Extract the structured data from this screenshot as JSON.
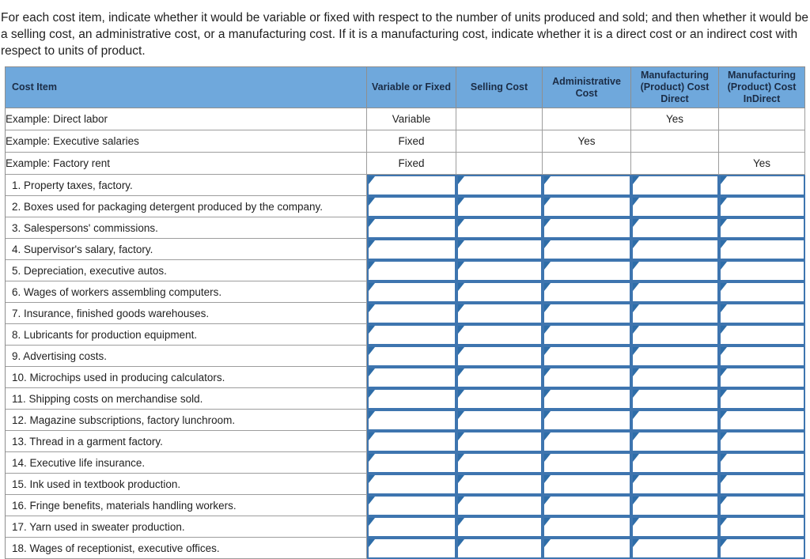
{
  "intro": "For each cost item, indicate whether it would be variable or fixed with respect to the number of units produced and sold; and then whether it would be a selling cost, an administrative cost, or a manufacturing cost. If it is a manufacturing cost, indicate whether it is a direct cost or an indirect cost with respect to units of product.",
  "table": {
    "headers": [
      "Cost Item",
      "Variable or Fixed",
      "Selling Cost",
      "Administrative Cost",
      "Manufacturing (Product) Cost Direct",
      "Manufacturing (Product) Cost InDirect"
    ],
    "example_rows": [
      {
        "item": "Example: Direct labor",
        "cells": [
          "Variable",
          "",
          "",
          "Yes",
          ""
        ]
      },
      {
        "item": "Example: Executive salaries",
        "cells": [
          "Fixed",
          "",
          "Yes",
          "",
          ""
        ]
      },
      {
        "item": "Example: Factory rent",
        "cells": [
          "Fixed",
          "",
          "",
          "",
          "Yes"
        ]
      }
    ],
    "items": [
      "1. Property taxes, factory.",
      "2. Boxes used for packaging detergent produced by the company.",
      "3. Salespersons' commissions.",
      "4. Supervisor's salary, factory.",
      "5. Depreciation, executive autos.",
      "6. Wages of workers assembling computers.",
      "7. Insurance, finished goods warehouses.",
      "8. Lubricants for production equipment.",
      "9. Advertising costs.",
      "10. Microchips used in producing calculators.",
      "11. Shipping costs on merchandise sold.",
      "12. Magazine subscriptions, factory lunchroom.",
      "13. Thread in a garment factory.",
      "14. Executive life insurance.",
      "15. Ink used in textbook production.",
      "16. Fringe benefits, materials handling workers.",
      "17. Yarn used in sweater production.",
      "18. Wages of receptionist, executive offices."
    ]
  },
  "colors": {
    "header_background": "#6FA8DC",
    "header_text": "#1B2C45",
    "dropdown_border_blue": "#3E75AF",
    "dropdown_flag_blue": "#2E6DA8",
    "grid_gray": "#9D9D9D",
    "body_text": "#1F1F1F"
  }
}
